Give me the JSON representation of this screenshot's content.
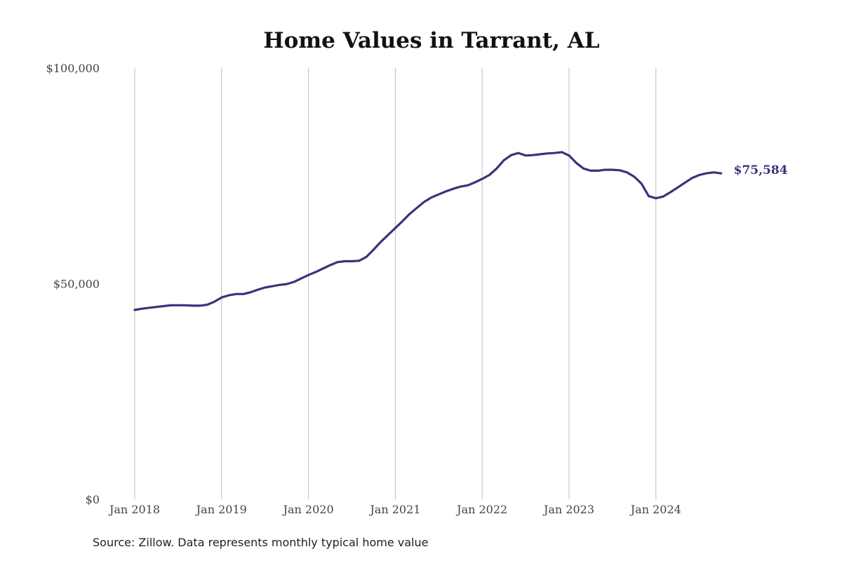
{
  "chart_data": {
    "type": "line",
    "title": "Home Values in Tarrant, AL",
    "xlabel": "",
    "ylabel": "",
    "ylim": [
      0,
      100000
    ],
    "yticks": [
      0,
      50000,
      100000
    ],
    "ytick_labels": [
      "$0",
      "$50,000",
      "$100,000"
    ],
    "xticks": [
      "2018-01",
      "2019-01",
      "2020-01",
      "2021-01",
      "2022-01",
      "2023-01",
      "2024-01"
    ],
    "xtick_labels": [
      "Jan 2018",
      "Jan 2019",
      "Jan 2020",
      "Jan 2021",
      "Jan 2022",
      "Jan 2023",
      "Jan 2024"
    ],
    "grid": "vertical",
    "line_color": "#37347c",
    "end_label": "$75,584",
    "x_start": "2018-01",
    "frequency": "monthly",
    "values": [
      43900,
      44200,
      44400,
      44600,
      44800,
      45000,
      45000,
      45000,
      44900,
      44900,
      45100,
      45800,
      46800,
      47300,
      47600,
      47600,
      48000,
      48600,
      49100,
      49400,
      49700,
      49900,
      50400,
      51200,
      52000,
      52700,
      53500,
      54300,
      55000,
      55200,
      55200,
      55300,
      56200,
      57900,
      59700,
      61300,
      62900,
      64500,
      66200,
      67600,
      69000,
      70000,
      70700,
      71400,
      72000,
      72500,
      72800,
      73500,
      74300,
      75200,
      76700,
      78600,
      79800,
      80300,
      79700,
      79800,
      80000,
      80200,
      80300,
      80500,
      79700,
      78000,
      76700,
      76200,
      76200,
      76400,
      76400,
      76300,
      75800,
      74800,
      73200,
      70300,
      69800,
      70200,
      71200,
      72300,
      73400,
      74500,
      75200,
      75600,
      75800,
      75584
    ]
  },
  "source": "Source: Zillow. Data represents monthly typical home value"
}
